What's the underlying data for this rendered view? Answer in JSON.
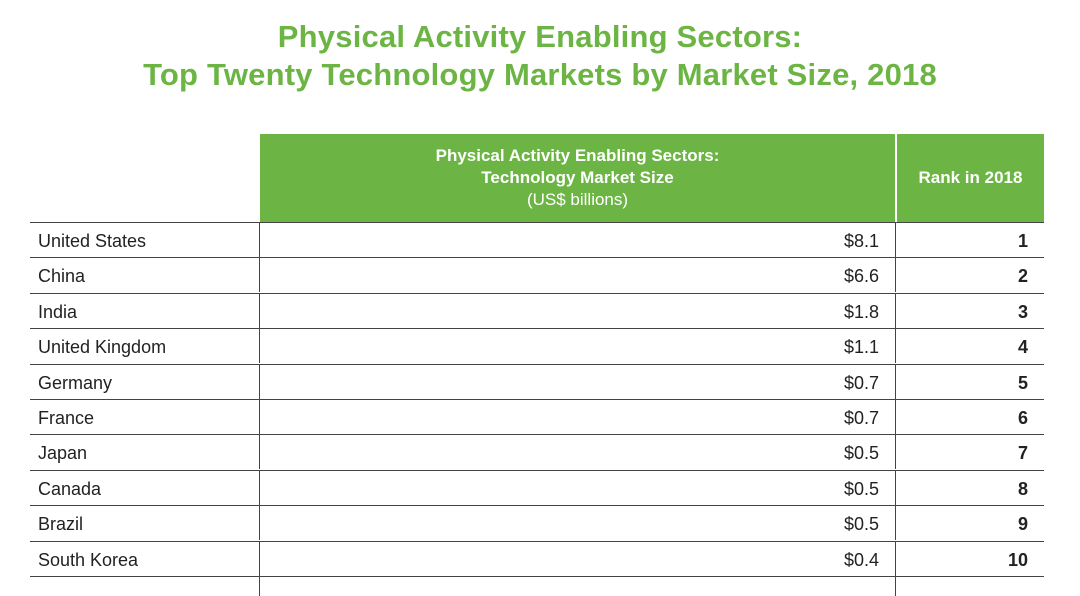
{
  "title": {
    "line1": "Physical Activity Enabling Sectors:",
    "line2": "Top Twenty Technology Markets by Market Size, 2018"
  },
  "colors": {
    "accent": "#6cb544",
    "rule": "#444444"
  },
  "chart_data": {
    "type": "table",
    "title": "Physical Activity Enabling Sectors: Top Twenty Technology Markets by Market Size, 2018",
    "columns": [
      {
        "line1": "Physical Activity Enabling Sectors:",
        "line2": "Technology Market Size",
        "line3": "(US$ billions)"
      },
      {
        "label": "Rank in 2018"
      }
    ],
    "rows": [
      {
        "country": "United States",
        "size": "$8.1",
        "rank": "1"
      },
      {
        "country": "China",
        "size": "$6.6",
        "rank": "2"
      },
      {
        "country": "India",
        "size": "$1.8",
        "rank": "3"
      },
      {
        "country": "United Kingdom",
        "size": "$1.1",
        "rank": "4"
      },
      {
        "country": "Germany",
        "size": "$0.7",
        "rank": "5"
      },
      {
        "country": "France",
        "size": "$0.7",
        "rank": "6"
      },
      {
        "country": "Japan",
        "size": "$0.5",
        "rank": "7"
      },
      {
        "country": "Canada",
        "size": "$0.5",
        "rank": "8"
      },
      {
        "country": "Brazil",
        "size": "$0.5",
        "rank": "9"
      },
      {
        "country": "South Korea",
        "size": "$0.4",
        "rank": "10"
      }
    ]
  }
}
